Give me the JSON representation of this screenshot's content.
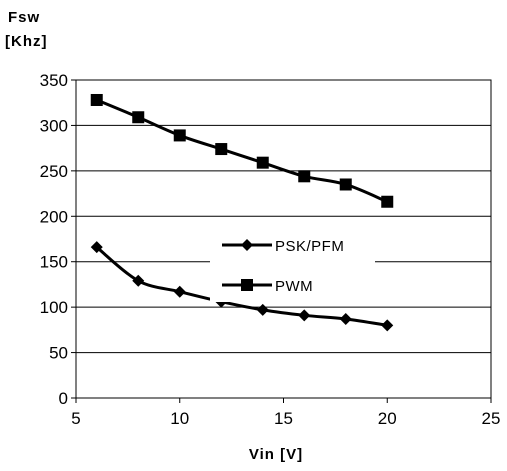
{
  "chart_data": {
    "type": "line",
    "ylabel_lines": [
      "Fsw",
      "[Khz]"
    ],
    "xlabel": "Vin [V]",
    "xlim": [
      5,
      25
    ],
    "ylim": [
      0,
      350
    ],
    "xticks": [
      5,
      10,
      15,
      20,
      25
    ],
    "yticks": [
      0,
      50,
      100,
      150,
      200,
      250,
      300,
      350
    ],
    "grid": "horizontal",
    "legend_position": "center",
    "series": [
      {
        "name": "PSK/PFM",
        "marker": "diamond",
        "color": "#000000",
        "x": [
          6,
          8,
          10,
          12,
          14,
          16,
          18,
          20
        ],
        "y": [
          166,
          129,
          117,
          106,
          97,
          91,
          87,
          80
        ]
      },
      {
        "name": "PWM",
        "marker": "square",
        "color": "#000000",
        "x": [
          6,
          8,
          10,
          12,
          14,
          16,
          18,
          20
        ],
        "y": [
          328,
          309,
          289,
          274,
          259,
          244,
          235,
          216
        ]
      }
    ]
  }
}
